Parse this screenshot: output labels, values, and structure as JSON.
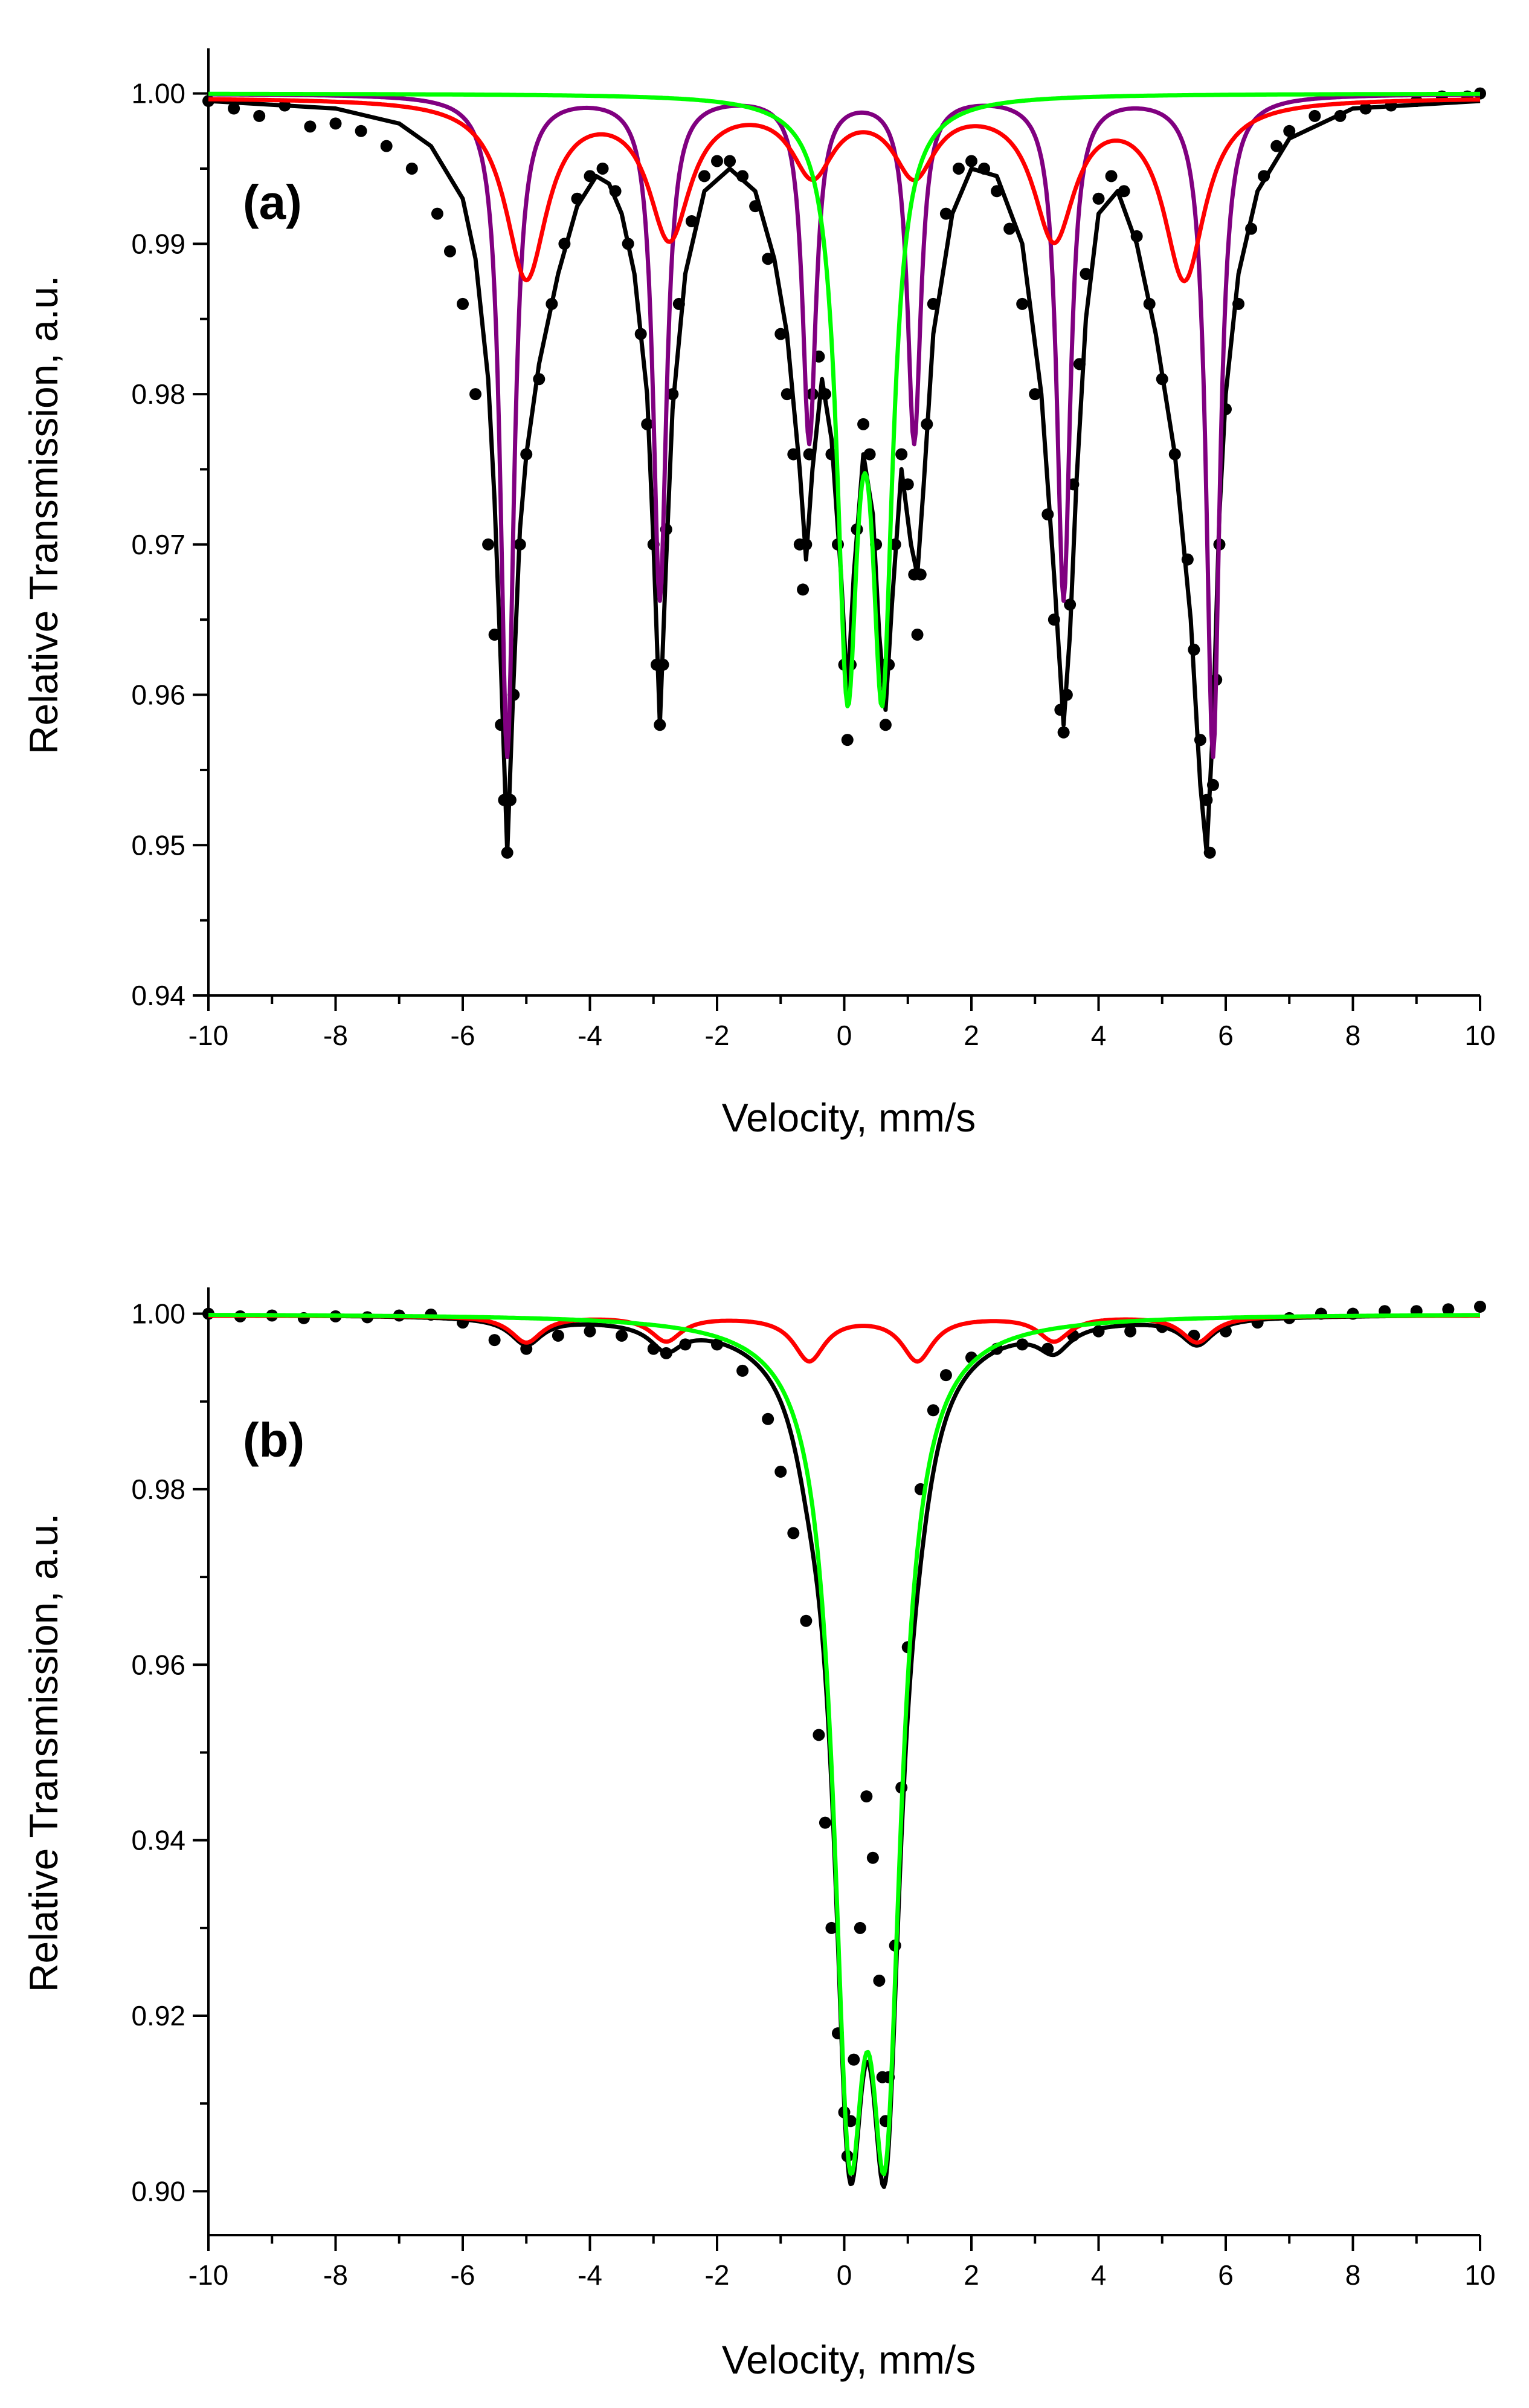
{
  "chart_data": [
    {
      "type": "scatter",
      "panel_label": "(a)",
      "xlabel": "Velocity, mm/s",
      "ylabel": "Relative Transmission, a.u.",
      "xlim": [
        -10,
        10
      ],
      "ylim": [
        0.94,
        1.003
      ],
      "x_ticks": [
        -10,
        -8,
        -6,
        -4,
        -2,
        0,
        2,
        4,
        6,
        8,
        10
      ],
      "y_ticks": [
        0.94,
        0.95,
        0.96,
        0.97,
        0.98,
        0.99,
        1.0
      ],
      "x_tick_labels": [
        "-10",
        "-8",
        "-6",
        "-4",
        "-2",
        "0",
        "2",
        "4",
        "6",
        "8",
        "10"
      ],
      "y_tick_labels": [
        "0.94",
        "0.95",
        "0.96",
        "0.97",
        "0.98",
        "0.99",
        "1.00"
      ],
      "grid": false,
      "legend": "none",
      "series": [
        {
          "kind": "points",
          "color": "#000000",
          "x": [
            -10,
            -9.6,
            -9.2,
            -8.8,
            -8.4,
            -8.0,
            -7.6,
            -7.2,
            -6.8,
            -6.4,
            -6.2,
            -6.0,
            -5.8,
            -5.6,
            -5.5,
            -5.4,
            -5.35,
            -5.3,
            -5.25,
            -5.2,
            -5.1,
            -5.0,
            -4.8,
            -4.6,
            -4.4,
            -4.2,
            -4.0,
            -3.8,
            -3.6,
            -3.4,
            -3.2,
            -3.1,
            -3.0,
            -2.95,
            -2.9,
            -2.85,
            -2.8,
            -2.7,
            -2.6,
            -2.4,
            -2.2,
            -2.0,
            -1.8,
            -1.6,
            -1.4,
            -1.2,
            -1.0,
            -0.9,
            -0.8,
            -0.7,
            -0.65,
            -0.6,
            -0.55,
            -0.5,
            -0.4,
            -0.3,
            -0.2,
            -0.1,
            0.0,
            0.05,
            0.1,
            0.2,
            0.3,
            0.4,
            0.5,
            0.6,
            0.65,
            0.7,
            0.8,
            0.9,
            1.0,
            1.1,
            1.15,
            1.2,
            1.3,
            1.4,
            1.6,
            1.8,
            2.0,
            2.2,
            2.4,
            2.6,
            2.8,
            3.0,
            3.2,
            3.3,
            3.4,
            3.45,
            3.5,
            3.55,
            3.6,
            3.7,
            3.8,
            4.0,
            4.2,
            4.4,
            4.6,
            4.8,
            5.0,
            5.2,
            5.4,
            5.5,
            5.6,
            5.7,
            5.75,
            5.8,
            5.85,
            5.9,
            6.0,
            6.2,
            6.4,
            6.6,
            6.8,
            7.0,
            7.4,
            7.8,
            8.2,
            8.6,
            9.0,
            9.4,
            9.8,
            10
          ],
          "y": [
            0.9995,
            0.999,
            0.9985,
            0.9992,
            0.9978,
            0.998,
            0.9975,
            0.9965,
            0.995,
            0.992,
            0.9895,
            0.986,
            0.98,
            0.97,
            0.964,
            0.958,
            0.953,
            0.9495,
            0.953,
            0.96,
            0.97,
            0.976,
            0.981,
            0.986,
            0.99,
            0.993,
            0.9945,
            0.995,
            0.9935,
            0.99,
            0.984,
            0.978,
            0.97,
            0.962,
            0.958,
            0.962,
            0.971,
            0.98,
            0.986,
            0.9915,
            0.9945,
            0.9955,
            0.9955,
            0.9945,
            0.9925,
            0.989,
            0.984,
            0.98,
            0.976,
            0.97,
            0.967,
            0.97,
            0.976,
            0.98,
            0.9825,
            0.98,
            0.976,
            0.97,
            0.962,
            0.957,
            0.962,
            0.971,
            0.978,
            0.976,
            0.97,
            0.962,
            0.958,
            0.962,
            0.97,
            0.976,
            0.974,
            0.968,
            0.964,
            0.968,
            0.978,
            0.986,
            0.992,
            0.995,
            0.9955,
            0.995,
            0.9935,
            0.991,
            0.986,
            0.98,
            0.972,
            0.965,
            0.959,
            0.9575,
            0.96,
            0.966,
            0.974,
            0.982,
            0.988,
            0.993,
            0.9945,
            0.9935,
            0.9905,
            0.986,
            0.981,
            0.976,
            0.969,
            0.963,
            0.957,
            0.953,
            0.9495,
            0.954,
            0.961,
            0.97,
            0.979,
            0.986,
            0.991,
            0.9945,
            0.9965,
            0.9975,
            0.9985,
            0.9985,
            0.999,
            0.9992,
            0.9995,
            0.9998,
            0.9998,
            1.0
          ]
        },
        {
          "kind": "line",
          "color": "#000000",
          "x": [
            -10,
            -8,
            -7,
            -6.5,
            -6,
            -5.8,
            -5.6,
            -5.5,
            -5.4,
            -5.3,
            -5.2,
            -5.1,
            -5.0,
            -4.8,
            -4.5,
            -4.2,
            -3.9,
            -3.7,
            -3.5,
            -3.3,
            -3.1,
            -3.0,
            -2.9,
            -2.8,
            -2.7,
            -2.5,
            -2.2,
            -1.8,
            -1.4,
            -1.1,
            -0.9,
            -0.7,
            -0.6,
            -0.5,
            -0.35,
            -0.2,
            -0.05,
            0.05,
            0.15,
            0.3,
            0.45,
            0.55,
            0.65,
            0.75,
            0.9,
            1.05,
            1.15,
            1.25,
            1.4,
            1.7,
            2.0,
            2.4,
            2.8,
            3.1,
            3.3,
            3.45,
            3.55,
            3.65,
            3.8,
            4.0,
            4.3,
            4.6,
            4.9,
            5.2,
            5.45,
            5.6,
            5.7,
            5.8,
            5.9,
            6.0,
            6.2,
            6.5,
            7.0,
            8.0,
            10
          ],
          "y": [
            0.9995,
            0.999,
            0.998,
            0.9965,
            0.993,
            0.989,
            0.981,
            0.973,
            0.962,
            0.9495,
            0.961,
            0.971,
            0.976,
            0.982,
            0.988,
            0.9925,
            0.9945,
            0.994,
            0.992,
            0.988,
            0.98,
            0.97,
            0.958,
            0.969,
            0.979,
            0.988,
            0.9935,
            0.995,
            0.9935,
            0.989,
            0.984,
            0.975,
            0.969,
            0.975,
            0.981,
            0.977,
            0.968,
            0.96,
            0.968,
            0.976,
            0.972,
            0.964,
            0.959,
            0.966,
            0.975,
            0.97,
            0.968,
            0.974,
            0.984,
            0.992,
            0.995,
            0.9945,
            0.99,
            0.98,
            0.968,
            0.958,
            0.964,
            0.974,
            0.985,
            0.992,
            0.9935,
            0.99,
            0.984,
            0.976,
            0.965,
            0.954,
            0.9495,
            0.958,
            0.972,
            0.98,
            0.988,
            0.9935,
            0.997,
            0.999,
            0.9995
          ]
        },
        {
          "kind": "line",
          "color": "#800080",
          "lorentzian": {
            "baseline": 1.0,
            "hwhm": 0.13,
            "centers": [
              -5.3,
              -2.9,
              -0.55,
              1.1,
              3.45,
              5.8
            ],
            "depths": [
              0.044,
              0.0335,
              0.023,
              0.023,
              0.0335,
              0.044
            ]
          }
        },
        {
          "kind": "line",
          "color": "#ff0000",
          "lorentzian": {
            "baseline": 0.99975,
            "hwhm": 0.4,
            "centers": [
              -5.0,
              -2.75,
              -0.5,
              1.1,
              3.3,
              5.35
            ],
            "depths": [
              0.0118,
              0.009,
              0.0047,
              0.0047,
              0.009,
              0.0118
            ]
          }
        },
        {
          "kind": "line",
          "color": "#00ff00",
          "lorentzian": {
            "baseline": 1.0,
            "hwhm": 0.2,
            "centers": [
              0.05,
              0.6
            ],
            "depths": [
              0.0365,
              0.0365
            ]
          }
        }
      ]
    },
    {
      "type": "scatter",
      "panel_label": "(b)",
      "xlabel": "Velocity, mm/s",
      "ylabel": "Relative Transmission, a.u.",
      "xlim": [
        -10,
        10
      ],
      "ylim": [
        0.895,
        1.003
      ],
      "x_ticks": [
        -10,
        -8,
        -6,
        -4,
        -2,
        0,
        2,
        4,
        6,
        8,
        10
      ],
      "y_ticks": [
        0.9,
        0.92,
        0.94,
        0.96,
        0.98,
        1.0
      ],
      "x_tick_labels": [
        "-10",
        "-8",
        "-6",
        "-4",
        "-2",
        "0",
        "2",
        "4",
        "6",
        "8",
        "10"
      ],
      "y_tick_labels": [
        "0.90",
        "0.92",
        "0.94",
        "0.96",
        "0.98",
        "1.00"
      ],
      "grid": false,
      "legend": "none",
      "series": [
        {
          "kind": "points",
          "color": "#000000",
          "x": [
            -10,
            -9.5,
            -9.0,
            -8.5,
            -8.0,
            -7.5,
            -7.0,
            -6.5,
            -6.0,
            -5.5,
            -5.0,
            -4.5,
            -4.0,
            -3.5,
            -3.0,
            -2.8,
            -2.5,
            -2.0,
            -1.6,
            -1.2,
            -1.0,
            -0.8,
            -0.6,
            -0.4,
            -0.3,
            -0.2,
            -0.1,
            0.0,
            0.05,
            0.1,
            0.15,
            0.25,
            0.35,
            0.45,
            0.55,
            0.6,
            0.65,
            0.7,
            0.8,
            0.9,
            1.0,
            1.2,
            1.4,
            1.6,
            2.0,
            2.4,
            2.8,
            3.2,
            3.6,
            4.0,
            4.5,
            5.0,
            5.5,
            6.0,
            6.5,
            7.0,
            7.5,
            8.0,
            8.5,
            9.0,
            9.5,
            10
          ],
          "y": [
            1.0,
            0.9997,
            0.9998,
            0.9995,
            0.9997,
            0.9996,
            0.9998,
            0.9999,
            0.999,
            0.997,
            0.996,
            0.9975,
            0.998,
            0.9975,
            0.996,
            0.9955,
            0.9965,
            0.9965,
            0.9935,
            0.988,
            0.982,
            0.975,
            0.965,
            0.952,
            0.942,
            0.93,
            0.918,
            0.909,
            0.904,
            0.908,
            0.915,
            0.93,
            0.945,
            0.938,
            0.924,
            0.913,
            0.908,
            0.913,
            0.928,
            0.946,
            0.962,
            0.98,
            0.989,
            0.993,
            0.995,
            0.996,
            0.9965,
            0.996,
            0.9975,
            0.998,
            0.998,
            0.9985,
            0.9975,
            0.998,
            0.999,
            0.9995,
            1.0,
            1.0,
            1.0003,
            1.0003,
            1.0005,
            1.0008
          ]
        },
        {
          "kind": "line",
          "color": "#000000",
          "combine": "product"
        },
        {
          "kind": "line",
          "color": "#ff0000",
          "lorentzian": {
            "baseline": 0.9998,
            "hwhm": 0.3,
            "centers": [
              -5.0,
              -2.8,
              -0.55,
              1.15,
              3.3,
              5.55
            ],
            "depths": [
              0.003,
              0.0028,
              0.005,
              0.005,
              0.0028,
              0.003
            ]
          }
        },
        {
          "kind": "line",
          "color": "#00ff00",
          "lorentzian": {
            "baseline": 1.0,
            "hwhm": 0.3,
            "centers": [
              0.08,
              0.65
            ],
            "depths": [
              0.08,
              0.08
            ]
          }
        }
      ]
    }
  ]
}
